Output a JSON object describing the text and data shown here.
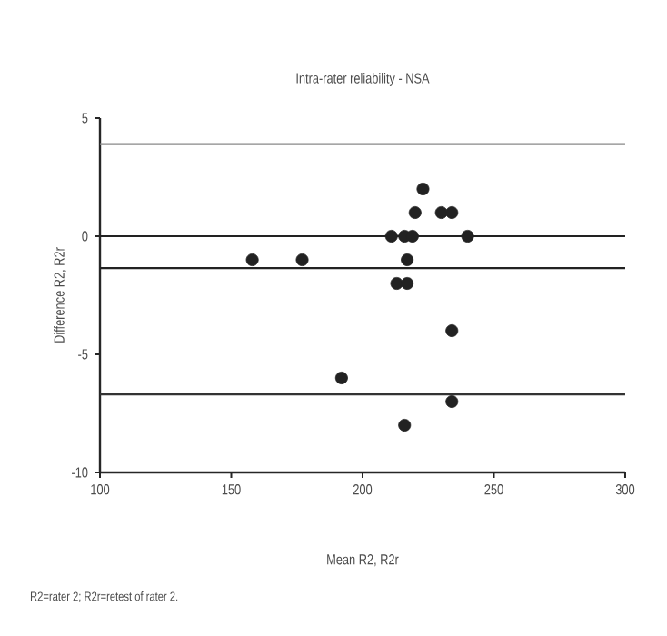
{
  "chart_data": {
    "type": "scatter",
    "title": "Intra-rater reliability - NSA",
    "xlabel": "Mean R2, R2r",
    "ylabel": "Difference R2, R2r",
    "annotations": [
      "R2=rater 2; R2r=retest of rater 2."
    ],
    "xlim": [
      100,
      300
    ],
    "ylim": [
      -10,
      5
    ],
    "xticks": [
      100,
      150,
      200,
      250,
      300
    ],
    "yticks": [
      -10,
      -5,
      0,
      5
    ],
    "marker": "circle",
    "grid": false,
    "series": [
      {
        "color": "#222222",
        "x": [
          158,
          177,
          192,
          211,
          213,
          217,
          216,
          219,
          217,
          220,
          223,
          230,
          234,
          240,
          234,
          234,
          216
        ],
        "values": [
          -1,
          -1,
          -6,
          0,
          -2,
          -2,
          0,
          0,
          -1,
          1,
          2,
          1,
          1,
          0,
          -4,
          -7,
          -8
        ]
      }
    ],
    "ref_lines": [
      {
        "axis": "y",
        "value": 3.9,
        "color": "#888888"
      },
      {
        "axis": "y",
        "value": 0,
        "color": "#222222"
      },
      {
        "axis": "y",
        "value": -1.35,
        "color": "#222222"
      },
      {
        "axis": "y",
        "value": -6.7,
        "color": "#333333"
      }
    ]
  }
}
